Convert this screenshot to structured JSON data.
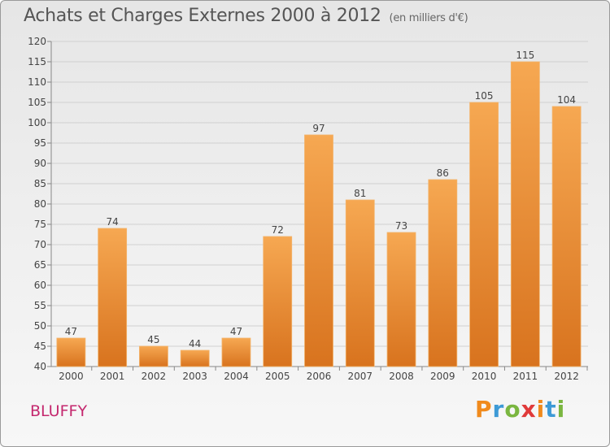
{
  "header": {
    "title": "Achats et Charges Externes 2000 à 2012",
    "unit": "(en milliers d'€)"
  },
  "footer": {
    "commune": "BLUFFY",
    "logo": [
      "P",
      "r",
      "o",
      "x",
      "i",
      "t",
      "i"
    ],
    "logo_colors": [
      "#f08a1c",
      "#3d9ad6",
      "#7ab640",
      "#e03a3a",
      "#f08a1c",
      "#3d9ad6",
      "#7ab640"
    ]
  },
  "colors": {
    "bar_top": "#f6a852",
    "bar_bottom": "#d8731e",
    "grid": "#d0d0d0",
    "axis": "#888888",
    "text": "#444444"
  },
  "chart_data": {
    "type": "bar",
    "categories": [
      "2000",
      "2001",
      "2002",
      "2003",
      "2004",
      "2005",
      "2006",
      "2007",
      "2008",
      "2009",
      "2010",
      "2011",
      "2012"
    ],
    "values": [
      47,
      74,
      45,
      44,
      47,
      72,
      97,
      81,
      73,
      86,
      105,
      115,
      104
    ],
    "title": "Achats et Charges Externes 2000 à 2012",
    "xlabel": "",
    "ylabel": "",
    "ylim": [
      40,
      120
    ],
    "yticks": [
      40,
      45,
      50,
      55,
      60,
      65,
      70,
      75,
      80,
      85,
      90,
      95,
      100,
      105,
      110,
      115,
      120
    ],
    "grid": true,
    "legend": "none"
  }
}
